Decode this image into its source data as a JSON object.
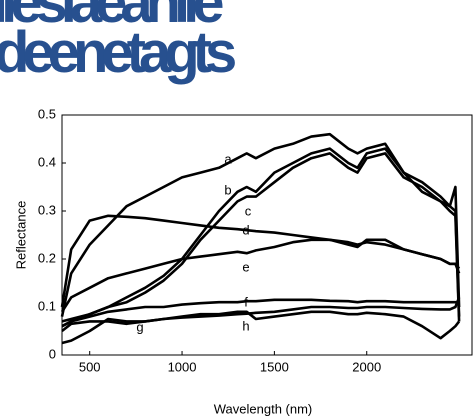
{
  "header_lines": [
    "ilesiaeanlle",
    "deenetagts"
  ],
  "chart_data": {
    "type": "line",
    "xlabel": "Wavelength (nm)",
    "ylabel": "Reflectance",
    "x": [
      350,
      400,
      500,
      600,
      700,
      800,
      900,
      1000,
      1100,
      1200,
      1300,
      1350,
      1400,
      1500,
      1600,
      1700,
      1800,
      1900,
      1950,
      2000,
      2100,
      2200,
      2300,
      2400,
      2450,
      2480,
      2500
    ],
    "xlim": [
      350,
      2570
    ],
    "xticks": [
      500,
      1000,
      1500,
      2000
    ],
    "ylim": [
      0,
      0.5
    ],
    "yticks": [
      0,
      0.1,
      0.2,
      0.3,
      0.4,
      0.5
    ],
    "series": [
      {
        "name": "a",
        "color": "#000000",
        "values": [
          0.08,
          0.17,
          0.23,
          0.27,
          0.31,
          0.33,
          0.35,
          0.37,
          0.38,
          0.39,
          0.41,
          0.42,
          0.41,
          0.43,
          0.44,
          0.455,
          0.46,
          0.43,
          0.42,
          0.43,
          0.44,
          0.38,
          0.34,
          0.32,
          0.31,
          0.35,
          0.1
        ]
      },
      {
        "name": "b",
        "color": "#000000",
        "values": [
          0.06,
          0.07,
          0.085,
          0.1,
          0.12,
          0.14,
          0.165,
          0.2,
          0.25,
          0.3,
          0.34,
          0.35,
          0.34,
          0.38,
          0.4,
          0.42,
          0.43,
          0.4,
          0.39,
          0.42,
          0.43,
          0.38,
          0.36,
          0.33,
          0.31,
          0.3,
          0.08
        ]
      },
      {
        "name": "c",
        "color": "#000000",
        "values": [
          0.07,
          0.075,
          0.085,
          0.1,
          0.11,
          0.13,
          0.155,
          0.19,
          0.24,
          0.28,
          0.32,
          0.33,
          0.33,
          0.36,
          0.39,
          0.41,
          0.42,
          0.39,
          0.38,
          0.41,
          0.42,
          0.37,
          0.35,
          0.32,
          0.3,
          0.29,
          0.07
        ]
      },
      {
        "name": "d",
        "color": "#000000",
        "values": [
          0.1,
          0.22,
          0.28,
          0.29,
          0.288,
          0.285,
          0.28,
          0.275,
          0.27,
          0.265,
          0.262,
          0.26,
          0.258,
          0.255,
          0.25,
          0.245,
          0.24,
          0.235,
          0.23,
          0.235,
          0.23,
          0.22,
          0.21,
          0.2,
          0.19,
          0.19,
          0.17
        ]
      },
      {
        "name": "e",
        "color": "#000000",
        "values": [
          0.09,
          0.12,
          0.14,
          0.16,
          0.17,
          0.18,
          0.19,
          0.2,
          0.205,
          0.21,
          0.215,
          0.212,
          0.218,
          0.225,
          0.235,
          0.24,
          0.24,
          0.23,
          0.225,
          0.24,
          0.24,
          0.22,
          0.21,
          0.2,
          0.19,
          0.19,
          0.18
        ]
      },
      {
        "name": "f",
        "color": "#000000",
        "values": [
          0.06,
          0.07,
          0.08,
          0.09,
          0.095,
          0.1,
          0.1,
          0.105,
          0.108,
          0.11,
          0.11,
          0.112,
          0.112,
          0.115,
          0.115,
          0.115,
          0.113,
          0.112,
          0.11,
          0.112,
          0.112,
          0.11,
          0.11,
          0.11,
          0.11,
          0.11,
          0.11
        ]
      },
      {
        "name": "g",
        "color": "#000000",
        "values": [
          0.05,
          0.065,
          0.07,
          0.07,
          0.065,
          0.07,
          0.075,
          0.08,
          0.085,
          0.085,
          0.09,
          0.09,
          0.075,
          0.08,
          0.085,
          0.09,
          0.09,
          0.085,
          0.085,
          0.088,
          0.085,
          0.08,
          0.06,
          0.035,
          0.05,
          0.06,
          0.07
        ]
      },
      {
        "name": "h",
        "color": "#000000",
        "values": [
          0.025,
          0.03,
          0.05,
          0.075,
          0.07,
          0.07,
          0.075,
          0.078,
          0.08,
          0.082,
          0.085,
          0.086,
          0.088,
          0.09,
          0.095,
          0.1,
          0.1,
          0.098,
          0.098,
          0.1,
          0.1,
          0.098,
          0.096,
          0.095,
          0.095,
          0.1,
          0.12
        ]
      }
    ]
  }
}
